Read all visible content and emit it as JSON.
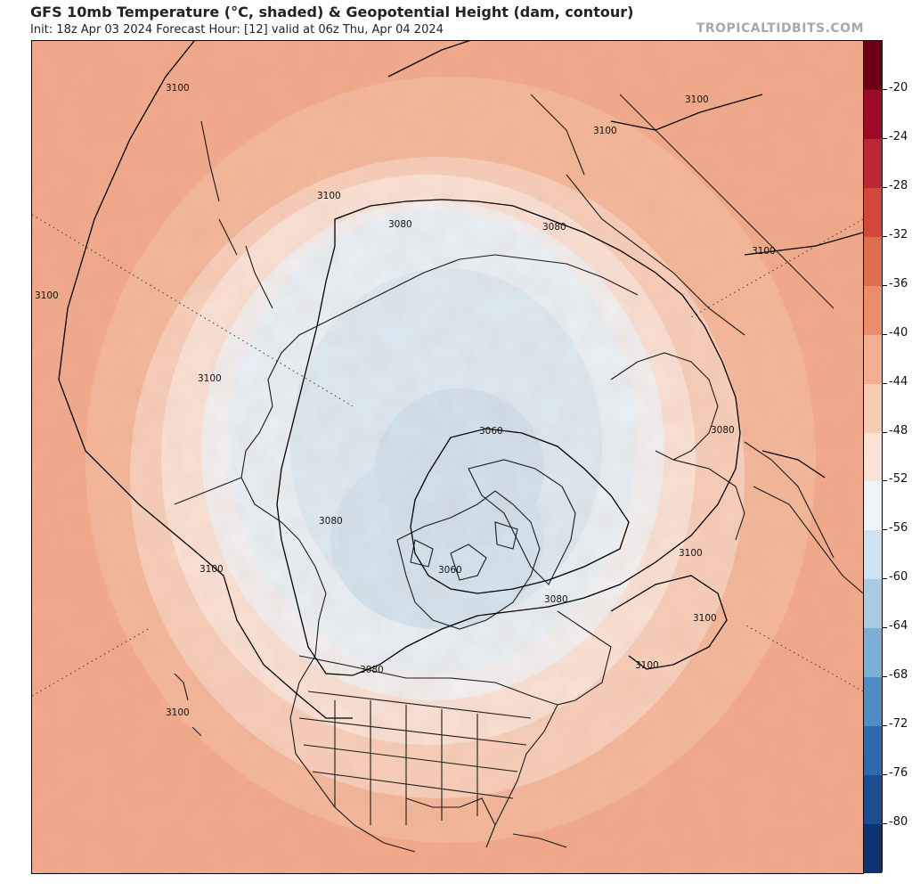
{
  "header": {
    "title": "GFS 10mb Temperature (°C, shaded) & Geopotential Height (dam, contour)",
    "subtitle": "Init: 18z Apr 03 2024   Forecast Hour: [12]   valid at 06z Thu, Apr 04 2024",
    "site": "TROPICALTIDBITS.COM"
  },
  "map": {
    "projection": "north-polar-stereographic",
    "variable": "temperature-10mb",
    "contour_labels": [
      "3100",
      "3100",
      "3100",
      "3100",
      "3100",
      "3100",
      "3100",
      "3100",
      "3100",
      "3100",
      "3100",
      "3100",
      "3080",
      "3080",
      "3080",
      "3080",
      "3080",
      "3080",
      "3060",
      "3060"
    ],
    "colors": {
      "warm_outer": "#f2ab8c",
      "warm_mid": "#f6c6ae",
      "transition": "#f9e0d3",
      "cool_ring": "#edf3f8",
      "cold_core": "#d6e8f4",
      "coldest": "#c6dcee"
    }
  },
  "colorbar": {
    "labels": [
      "-20",
      "-24",
      "-28",
      "-32",
      "-36",
      "-40",
      "-44",
      "-48",
      "-52",
      "-56",
      "-60",
      "-64",
      "-68",
      "-72",
      "-76",
      "-80"
    ],
    "colors": [
      "#6e0016",
      "#9b0b25",
      "#bd2733",
      "#d1483b",
      "#de6d50",
      "#e98e6d",
      "#f3ae8f",
      "#f8cbb3",
      "#fae2d6",
      "#eef4f9",
      "#cfe2ef",
      "#a8cbe3",
      "#7bafd4",
      "#4f8ec4",
      "#2f6aad",
      "#1b4d91",
      "#0f3270"
    ]
  }
}
